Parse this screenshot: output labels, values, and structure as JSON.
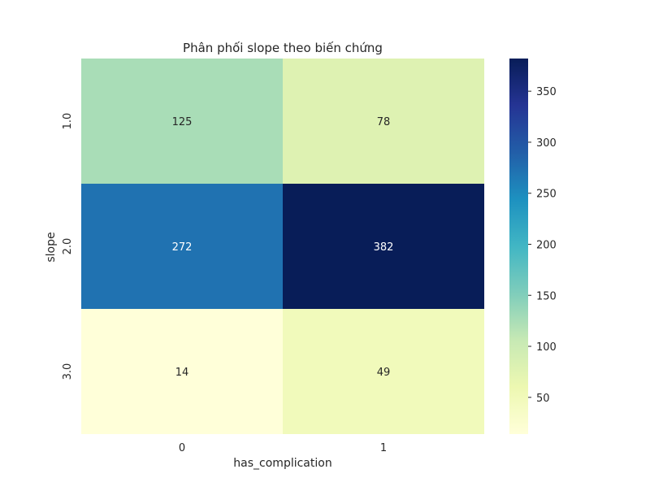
{
  "chart_data": {
    "type": "heatmap",
    "title": "Phân phối slope theo biến chứng",
    "xlabel": "has_complication",
    "ylabel": "slope",
    "x_categories": [
      "0",
      "1"
    ],
    "y_categories": [
      "1.0",
      "2.0",
      "3.0"
    ],
    "values": [
      [
        125,
        78
      ],
      [
        272,
        382
      ],
      [
        14,
        49
      ]
    ],
    "colormap": "YlGnBu",
    "color_range": [
      14,
      382
    ],
    "colorbar_ticks": [
      50,
      100,
      150,
      200,
      250,
      300,
      350
    ],
    "annotations": true
  }
}
